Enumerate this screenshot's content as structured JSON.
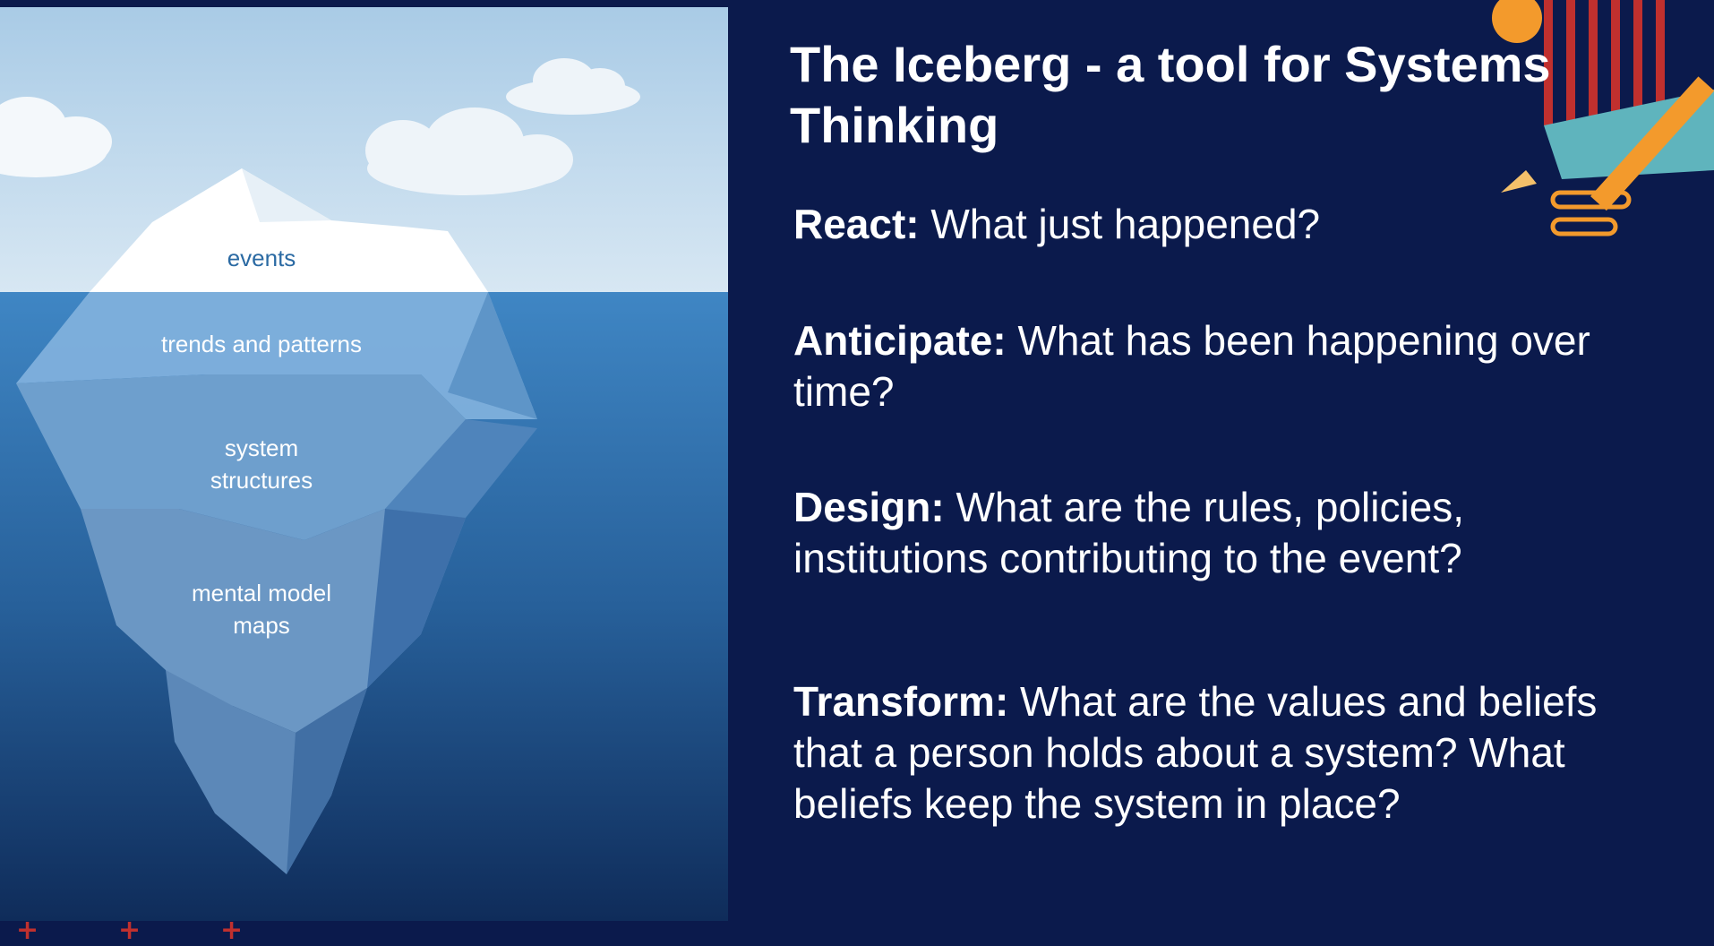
{
  "diagram": {
    "labels": [
      {
        "key": "events",
        "text": "events"
      },
      {
        "key": "trends",
        "text": "trends and patterns"
      },
      {
        "key": "structures",
        "text": "system\nstructures"
      },
      {
        "key": "mental",
        "text": "mental model\nmaps"
      }
    ]
  },
  "slide": {
    "title": "The Iceberg - a tool for Systems Thinking",
    "items": [
      {
        "term": "React:",
        "text": " What just happened?"
      },
      {
        "term": "Anticipate:",
        "text": " What has been happening over time?"
      },
      {
        "term": "Design:",
        "text": " What are the rules, policies, institutions contributing to the event?"
      },
      {
        "term": "Transform:",
        "text": " What are the values and beliefs that a person holds about a system? What beliefs keep the system in place?"
      }
    ]
  },
  "colors": {
    "background": "#0b1a4c",
    "sky": "#bcd6ea",
    "water_top": "#3f86c4",
    "water_bottom": "#0f2c5a",
    "accent_orange": "#f39a2c",
    "accent_red": "#c0302e",
    "accent_teal": "#5fb4bd"
  },
  "icons": [
    "iceberg-illustration",
    "cloud-icon",
    "pencil-icon",
    "plus-icon"
  ]
}
